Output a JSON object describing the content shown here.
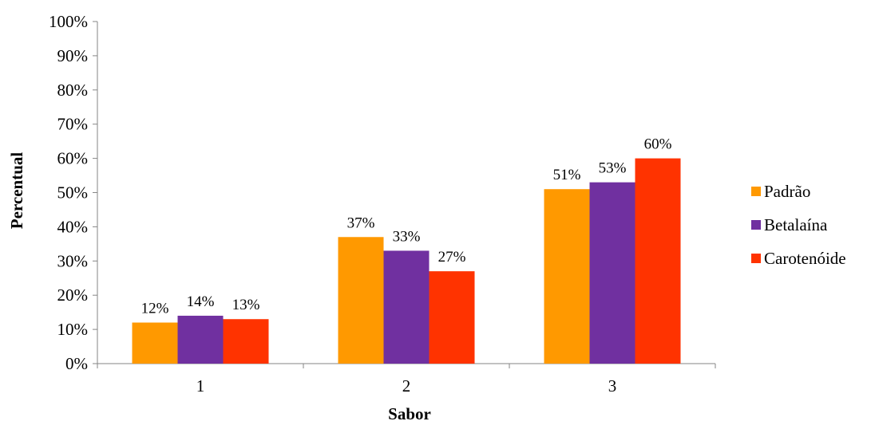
{
  "chart_data": {
    "type": "bar",
    "categories": [
      "1",
      "2",
      "3"
    ],
    "series": [
      {
        "name": "Padrão",
        "values": [
          12,
          37,
          51
        ],
        "labels": [
          "12%",
          "37%",
          "51%"
        ],
        "color": "#FF9900"
      },
      {
        "name": "Betalaína",
        "values": [
          14,
          33,
          53
        ],
        "labels": [
          "14%",
          "33%",
          "53%"
        ],
        "color": "#7030A0"
      },
      {
        "name": "Carotenóide",
        "values": [
          13,
          27,
          60
        ],
        "labels": [
          "13%",
          "27%",
          "60%"
        ],
        "color": "#FF3300"
      }
    ],
    "xlabel": "Sabor",
    "ylabel": "Percentual",
    "ylim": [
      0,
      100
    ],
    "yticks": [
      "0%",
      "10%",
      "20%",
      "30%",
      "40%",
      "50%",
      "60%",
      "70%",
      "80%",
      "90%",
      "100%"
    ],
    "grid": false,
    "legend_position": "right"
  }
}
